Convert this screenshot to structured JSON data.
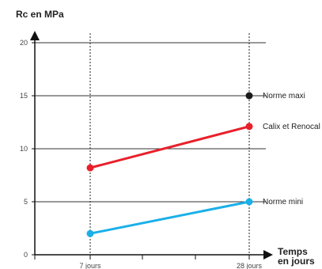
{
  "chart_data": {
    "type": "line",
    "ylabel": "Rc en MPa",
    "xlabel_line1": "Temps",
    "xlabel_line2": "en jours",
    "categories": [
      "7 jours",
      "28 jours"
    ],
    "ylim": [
      0,
      20
    ],
    "yticks": [
      0,
      5,
      10,
      15,
      20
    ],
    "grid": true,
    "series": [
      {
        "name": "Calix et Renocal",
        "x": [
          "7 jours",
          "28 jours"
        ],
        "values": [
          8.2,
          12.1
        ],
        "color": "#e8202a"
      },
      {
        "name": "Norme mini",
        "x": [
          "7 jours",
          "28 jours"
        ],
        "values": [
          2.0,
          5.0
        ],
        "color": "#1ab0e8"
      },
      {
        "name": "Norme maxi",
        "x": [
          "28 jours"
        ],
        "values": [
          15.0
        ],
        "color": "#1a1a1a"
      }
    ]
  }
}
